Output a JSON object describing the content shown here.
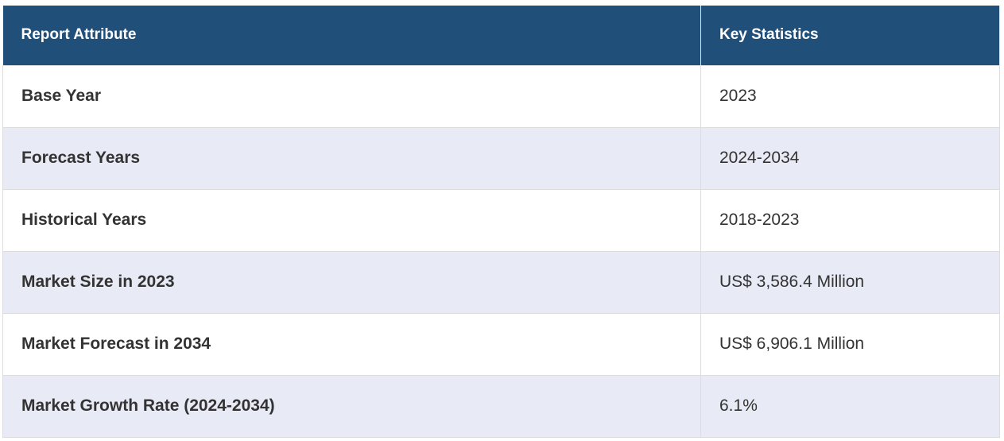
{
  "table": {
    "header": [
      "Report Attribute",
      "Key Statistics"
    ],
    "rows": [
      [
        "Base Year",
        "2023"
      ],
      [
        "Forecast Years",
        "2024-2034"
      ],
      [
        "Historical Years",
        "2018-2023"
      ],
      [
        "Market Size in 2023",
        "US$ 3,586.4 Million"
      ],
      [
        "Market Forecast in 2034",
        "US$ 6,906.1 Million"
      ],
      [
        "Market Growth Rate (2024-2034)",
        "6.1%"
      ]
    ]
  }
}
